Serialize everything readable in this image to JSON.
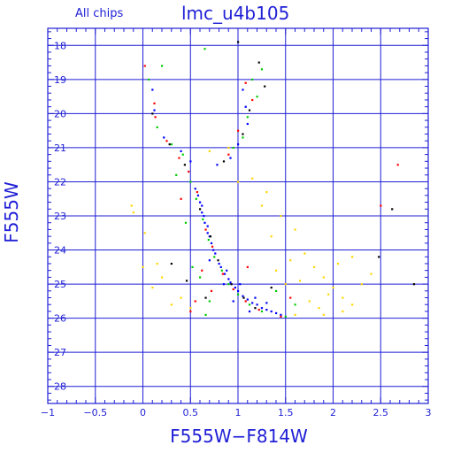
{
  "chart_data": {
    "type": "scatter",
    "title": "lmc_u4b105",
    "subtitle": "All chips",
    "xlabel": "F555W−F814W",
    "ylabel": "F555W",
    "xlim": [
      -1,
      3
    ],
    "ylim": [
      28.5,
      17.5
    ],
    "y_inverted": true,
    "grid": true,
    "x_ticks": [
      -1,
      -0.5,
      0,
      0.5,
      1,
      1.5,
      2,
      2.5,
      3
    ],
    "x_tick_labels": [
      "−1",
      "−0.5",
      "0",
      "0.5",
      "1",
      "1.5",
      "2",
      "2.5",
      "3"
    ],
    "y_ticks": [
      18,
      19,
      20,
      21,
      22,
      23,
      24,
      25,
      26,
      27,
      28
    ],
    "y_tick_labels": [
      "18",
      "19",
      "20",
      "21",
      "22",
      "23",
      "24",
      "25",
      "26",
      "27",
      "28"
    ],
    "series": [
      {
        "color": "#0000ff",
        "points": [
          [
            0.55,
            22.2
          ],
          [
            0.6,
            22.6
          ],
          [
            0.62,
            22.9
          ],
          [
            0.65,
            23.2
          ],
          [
            0.68,
            23.5
          ],
          [
            0.72,
            23.8
          ],
          [
            0.76,
            24.1
          ],
          [
            0.8,
            24.4
          ],
          [
            0.86,
            24.7
          ],
          [
            0.92,
            24.95
          ],
          [
            1.0,
            25.2
          ],
          [
            1.1,
            25.45
          ],
          [
            1.2,
            25.6
          ],
          [
            1.3,
            25.75
          ],
          [
            1.4,
            25.85
          ],
          [
            0.58,
            22.4
          ],
          [
            0.64,
            23.0
          ],
          [
            0.7,
            23.6
          ],
          [
            0.74,
            24.0
          ],
          [
            0.82,
            24.5
          ],
          [
            0.9,
            24.85
          ],
          [
            0.97,
            25.1
          ],
          [
            1.05,
            25.35
          ],
          [
            1.15,
            25.55
          ],
          [
            1.25,
            25.7
          ],
          [
            1.35,
            25.8
          ],
          [
            1.45,
            25.9
          ],
          [
            1.05,
            19.3
          ],
          [
            1.08,
            19.8
          ],
          [
            1.1,
            20.3
          ],
          [
            1.0,
            20.9
          ],
          [
            0.92,
            21.3
          ],
          [
            0.78,
            21.5
          ],
          [
            0.5,
            21.4
          ],
          [
            0.4,
            21.1
          ],
          [
            0.22,
            20.7
          ],
          [
            0.12,
            19.9
          ],
          [
            0.1,
            19.3
          ],
          [
            0.68,
            23.3
          ],
          [
            0.7,
            24.3
          ],
          [
            0.85,
            25.0
          ],
          [
            0.95,
            25.5
          ],
          [
            1.12,
            25.8
          ],
          [
            0.62,
            22.7
          ],
          [
            0.88,
            24.6
          ],
          [
            1.02,
            25.0
          ],
          [
            1.18,
            25.4
          ],
          [
            1.3,
            25.55
          ]
        ]
      },
      {
        "color": "#00cc00",
        "points": [
          [
            0.56,
            22.5
          ],
          [
            0.63,
            23.1
          ],
          [
            0.69,
            23.7
          ],
          [
            0.75,
            24.2
          ],
          [
            0.83,
            24.6
          ],
          [
            0.9,
            25.0
          ],
          [
            1.0,
            25.3
          ],
          [
            1.12,
            25.6
          ],
          [
            1.25,
            25.8
          ],
          [
            1.5,
            25.95
          ],
          [
            0.5,
            22.0
          ],
          [
            0.42,
            21.2
          ],
          [
            0.3,
            20.9
          ],
          [
            0.15,
            20.4
          ],
          [
            0.06,
            19.0
          ],
          [
            0.2,
            18.6
          ],
          [
            1.15,
            19.0
          ],
          [
            1.2,
            19.5
          ],
          [
            1.1,
            20.1
          ],
          [
            1.05,
            20.7
          ],
          [
            0.95,
            21.0
          ],
          [
            0.6,
            24.8
          ],
          [
            0.7,
            25.5
          ],
          [
            1.4,
            25.2
          ],
          [
            1.6,
            25.6
          ],
          [
            0.45,
            23.2
          ],
          [
            0.52,
            24.5
          ],
          [
            0.66,
            25.9
          ],
          [
            0.35,
            21.8
          ],
          [
            1.25,
            18.7
          ],
          [
            0.65,
            18.1
          ]
        ]
      },
      {
        "color": "#ff0000",
        "points": [
          [
            0.57,
            22.3
          ],
          [
            0.66,
            23.4
          ],
          [
            0.73,
            23.9
          ],
          [
            0.84,
            24.7
          ],
          [
            0.95,
            25.15
          ],
          [
            1.08,
            25.5
          ],
          [
            1.22,
            25.75
          ],
          [
            1.45,
            25.95
          ],
          [
            0.48,
            21.7
          ],
          [
            0.38,
            21.3
          ],
          [
            0.25,
            20.8
          ],
          [
            0.13,
            20.1
          ],
          [
            0.02,
            18.6
          ],
          [
            0.12,
            19.7
          ],
          [
            1.08,
            19.1
          ],
          [
            1.15,
            19.6
          ],
          [
            1.0,
            20.5
          ],
          [
            0.9,
            21.2
          ],
          [
            0.62,
            24.6
          ],
          [
            0.72,
            25.2
          ],
          [
            0.5,
            25.8
          ],
          [
            1.55,
            25.4
          ],
          [
            1.1,
            24.5
          ],
          [
            2.5,
            22.7
          ],
          [
            2.68,
            21.5
          ],
          [
            0.4,
            22.5
          ],
          [
            0.55,
            25.5
          ]
        ]
      },
      {
        "color": "#000000",
        "points": [
          [
            0.6,
            22.8
          ],
          [
            0.71,
            23.6
          ],
          [
            0.79,
            24.3
          ],
          [
            0.93,
            25.0
          ],
          [
            1.06,
            25.4
          ],
          [
            1.18,
            25.7
          ],
          [
            0.44,
            21.5
          ],
          [
            0.28,
            20.9
          ],
          [
            0.1,
            20.0
          ],
          [
            1.12,
            19.9
          ],
          [
            1.05,
            20.6
          ],
          [
            0.85,
            21.4
          ],
          [
            0.3,
            24.4
          ],
          [
            0.46,
            24.9
          ],
          [
            1.0,
            17.9
          ],
          [
            1.22,
            18.5
          ],
          [
            1.28,
            19.2
          ],
          [
            2.62,
            22.8
          ],
          [
            2.48,
            24.2
          ],
          [
            2.85,
            25.0
          ],
          [
            0.66,
            25.4
          ],
          [
            1.35,
            25.1
          ]
        ]
      },
      {
        "color": "#ffd700",
        "points": [
          [
            -0.12,
            22.7
          ],
          [
            -0.1,
            22.9
          ],
          [
            0.02,
            23.5
          ],
          [
            0.15,
            24.4
          ],
          [
            0.2,
            24.8
          ],
          [
            0.4,
            25.4
          ],
          [
            0.5,
            25.7
          ],
          [
            0.7,
            21.1
          ],
          [
            0.9,
            21.0
          ],
          [
            1.15,
            21.9
          ],
          [
            1.3,
            22.3
          ],
          [
            1.45,
            23.0
          ],
          [
            1.6,
            23.4
          ],
          [
            1.7,
            24.1
          ],
          [
            1.8,
            24.5
          ],
          [
            1.9,
            24.8
          ],
          [
            2.0,
            25.1
          ],
          [
            2.1,
            25.4
          ],
          [
            2.2,
            25.6
          ],
          [
            2.3,
            25.0
          ],
          [
            2.4,
            24.7
          ],
          [
            1.55,
            24.3
          ],
          [
            1.65,
            24.9
          ],
          [
            1.75,
            25.5
          ],
          [
            1.85,
            25.7
          ],
          [
            1.4,
            24.6
          ],
          [
            1.5,
            25.0
          ],
          [
            1.95,
            25.3
          ],
          [
            2.05,
            24.4
          ],
          [
            2.2,
            24.2
          ],
          [
            1.25,
            22.7
          ],
          [
            1.35,
            23.6
          ],
          [
            1.9,
            25.9
          ],
          [
            2.1,
            25.8
          ],
          [
            0.0,
            24.5
          ],
          [
            0.1,
            25.1
          ],
          [
            0.3,
            25.6
          ],
          [
            1.0,
            22.0
          ],
          [
            1.6,
            25.9
          ]
        ]
      }
    ]
  }
}
